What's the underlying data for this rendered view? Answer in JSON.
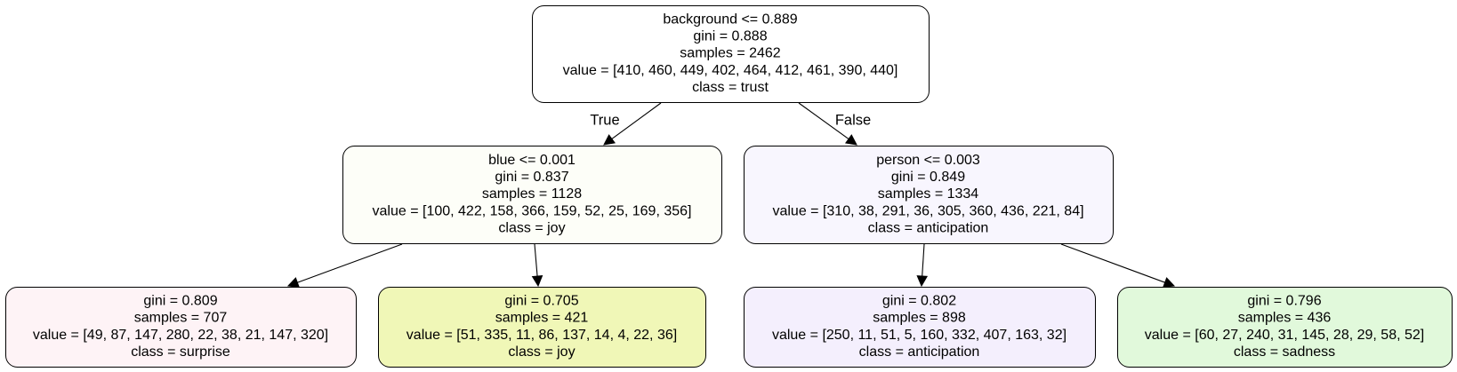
{
  "nodes": [
    {
      "id": "root",
      "fill": "#ffffff",
      "lines": [
        "background <= 0.889",
        "gini = 0.888",
        "samples = 2462",
        "value = [410, 460, 449, 402, 464, 412, 461, 390, 440]",
        "class = trust"
      ]
    },
    {
      "id": "left",
      "fill": "#fdfef8",
      "lines": [
        "blue <= 0.001",
        "gini = 0.837",
        "samples = 1128",
        "value = [100, 422, 158, 366, 159, 52, 25, 169, 356]",
        "class = joy"
      ]
    },
    {
      "id": "right",
      "fill": "#f8f6fe",
      "lines": [
        "person <= 0.003",
        "gini = 0.849",
        "samples = 1334",
        "value = [310, 38, 291, 36, 305, 360, 436, 221, 84]",
        "class = anticipation"
      ]
    },
    {
      "id": "ll",
      "fill": "#fef3f6",
      "lines": [
        "gini = 0.809",
        "samples = 707",
        "value = [49, 87, 147, 280, 22, 38, 21, 147, 320]",
        "class = surprise"
      ]
    },
    {
      "id": "lr",
      "fill": "#f0f7b7",
      "lines": [
        "gini = 0.705",
        "samples = 421",
        "value = [51, 335, 11, 86, 137, 14, 4, 22, 36]",
        "class = joy"
      ]
    },
    {
      "id": "rl",
      "fill": "#f4effd",
      "lines": [
        "gini = 0.802",
        "samples = 898",
        "value = [250, 11, 51, 5, 160, 332, 407, 163, 32]",
        "class = anticipation"
      ]
    },
    {
      "id": "rr",
      "fill": "#e1f9db",
      "lines": [
        "gini = 0.796",
        "samples = 436",
        "value = [60, 27, 240, 31, 145, 28, 29, 58, 52]",
        "class = sadness"
      ]
    }
  ],
  "edges": [
    {
      "from": "root",
      "to": "left",
      "label": "True"
    },
    {
      "from": "root",
      "to": "right",
      "label": "False"
    },
    {
      "from": "left",
      "to": "ll",
      "label": ""
    },
    {
      "from": "left",
      "to": "lr",
      "label": ""
    },
    {
      "from": "right",
      "to": "rl",
      "label": ""
    },
    {
      "from": "right",
      "to": "rr",
      "label": ""
    }
  ]
}
